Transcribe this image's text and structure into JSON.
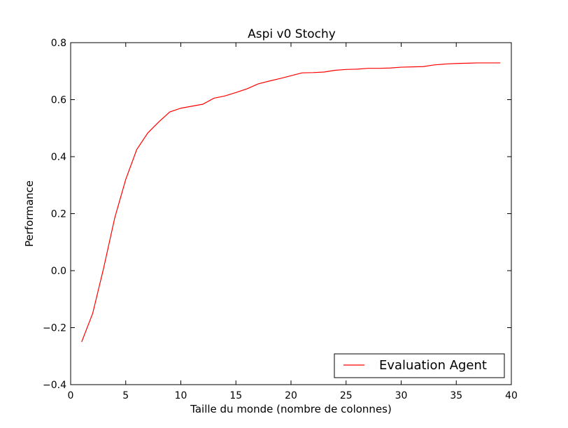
{
  "chart_data": {
    "type": "line",
    "title": "Aspi v0 Stochy",
    "xlabel": "Taille du monde (nombre de colonnes)",
    "ylabel": "Performance",
    "xlim": [
      0,
      40
    ],
    "ylim": [
      -0.4,
      0.8
    ],
    "x_ticks": [
      {
        "value": 0,
        "label": "0"
      },
      {
        "value": 5,
        "label": "5"
      },
      {
        "value": 10,
        "label": "10"
      },
      {
        "value": 15,
        "label": "15"
      },
      {
        "value": 20,
        "label": "20"
      },
      {
        "value": 25,
        "label": "25"
      },
      {
        "value": 30,
        "label": "30"
      },
      {
        "value": 35,
        "label": "35"
      },
      {
        "value": 40,
        "label": "40"
      }
    ],
    "y_ticks": [
      {
        "value": -0.4,
        "label": "−0.4"
      },
      {
        "value": -0.2,
        "label": "−0.2"
      },
      {
        "value": 0.0,
        "label": "0.0"
      },
      {
        "value": 0.2,
        "label": "0.2"
      },
      {
        "value": 0.4,
        "label": "0.4"
      },
      {
        "value": 0.6,
        "label": "0.6"
      },
      {
        "value": 0.8,
        "label": "0.8"
      }
    ],
    "grid": false,
    "legend_position": "bottom-right",
    "series": [
      {
        "name": "Evaluation Agent",
        "color": "#ff0000",
        "x": [
          1,
          2,
          3,
          4,
          5,
          6,
          7,
          8,
          9,
          10,
          11,
          12,
          13,
          14,
          15,
          16,
          17,
          18,
          19,
          20,
          21,
          22,
          23,
          24,
          25,
          26,
          27,
          28,
          29,
          30,
          31,
          32,
          33,
          34,
          35,
          36,
          37,
          38,
          39
        ],
        "y": [
          -0.25,
          -0.15,
          0.01,
          0.185,
          0.32,
          0.425,
          0.483,
          0.522,
          0.557,
          0.57,
          0.577,
          0.584,
          0.605,
          0.613,
          0.625,
          0.638,
          0.655,
          0.665,
          0.674,
          0.684,
          0.694,
          0.695,
          0.697,
          0.703,
          0.706,
          0.707,
          0.71,
          0.71,
          0.711,
          0.714,
          0.715,
          0.716,
          0.722,
          0.725,
          0.727,
          0.728,
          0.729,
          0.729,
          0.729
        ]
      }
    ]
  }
}
